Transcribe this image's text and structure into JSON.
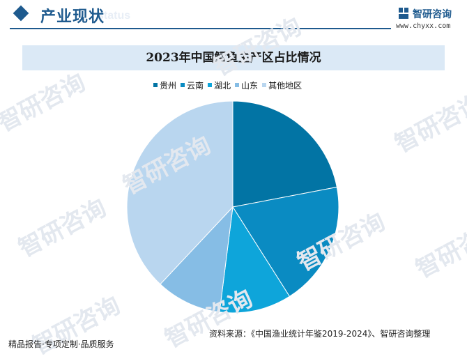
{
  "header": {
    "section_title": "产业现状",
    "section_subtitle": "status"
  },
  "brand": {
    "name": "智研咨询",
    "url": "www.chyxx.com",
    "watermark": "智研咨询"
  },
  "chart_data": {
    "type": "pie",
    "title": "2023年中国鲟鱼主产区占比情况",
    "categories": [
      "贵州",
      "云南",
      "湖北",
      "山东",
      "其他地区"
    ],
    "values": [
      22,
      19,
      11,
      10,
      38
    ],
    "colors": [
      "#0274a4",
      "#0a8bc2",
      "#0ea5da",
      "#86bde5",
      "#b9d6ef"
    ],
    "legend_position": "top"
  },
  "source": "资料来源：《中国渔业统计年鉴2019-2024》、智研咨询整理",
  "footer": {
    "tagline": "精品报告·专项定制·品质服务"
  }
}
